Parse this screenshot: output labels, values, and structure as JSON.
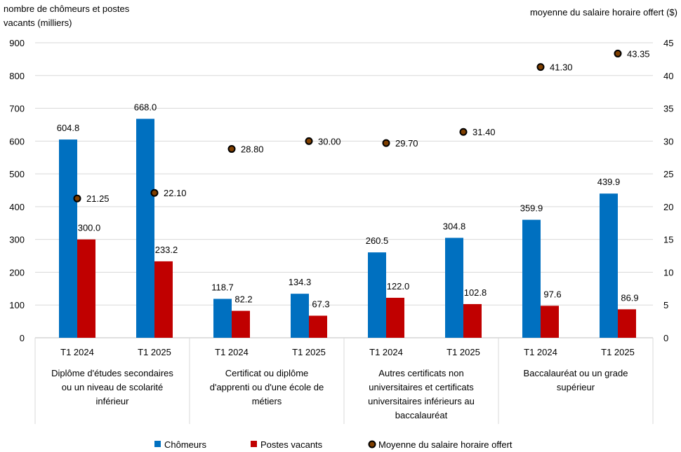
{
  "chart_data": {
    "type": "bar",
    "ylabel": "nombre de chômeurs et postes vacants (milliers)",
    "ylabel_lines": [
      "nombre de chômeurs et postes",
      "vacants (milliers)"
    ],
    "y2label": "moyenne du salaire horaire offert ($)",
    "ylim": [
      0,
      900
    ],
    "y2lim": [
      0,
      45
    ],
    "yticks": [
      0,
      100,
      200,
      300,
      400,
      500,
      600,
      700,
      800,
      900
    ],
    "y2ticks": [
      0,
      5,
      10,
      15,
      20,
      25,
      30,
      35,
      40,
      45
    ],
    "grid": true,
    "legend_position": "bottom",
    "groups": [
      {
        "label": "Diplôme d'études secondaires ou un niveau de scolarité inférieur",
        "label_lines": [
          "Diplôme d'études secondaires",
          "ou un niveau de scolarité",
          "inférieur"
        ]
      },
      {
        "label": "Certificat ou diplôme d'apprenti ou d'une école de métiers",
        "label_lines": [
          "Certificat ou diplôme",
          "d'apprenti ou d'une école de",
          "métiers"
        ]
      },
      {
        "label": "Autres certificats non universitaires et certificats universitaires inférieurs au baccalauréat",
        "label_lines": [
          "Autres certificats non",
          "universitaires et certificats",
          "universitaires inférieurs au",
          "baccalauréat"
        ]
      },
      {
        "label": "Baccalauréat ou un grade supérieur",
        "label_lines": [
          "Baccalauréat ou un grade",
          "supérieur"
        ]
      }
    ],
    "categories": [
      "T1 2024",
      "T1 2025",
      "T1 2024",
      "T1 2025",
      "T1 2024",
      "T1 2025",
      "T1 2024",
      "T1 2025"
    ],
    "series": [
      {
        "name": "Chômeurs",
        "type": "bar",
        "axis": "left",
        "color": "#0070C0",
        "values": [
          604.8,
          668.0,
          118.7,
          134.3,
          260.5,
          304.8,
          359.9,
          439.9
        ]
      },
      {
        "name": "Postes vacants",
        "type": "bar",
        "axis": "left",
        "color": "#C00000",
        "values": [
          300.0,
          233.2,
          82.2,
          67.3,
          122.0,
          102.8,
          97.6,
          86.9
        ]
      },
      {
        "name": "Moyenne du salaire horaire offert",
        "type": "scatter",
        "axis": "right",
        "color": "#7F3F00",
        "values": [
          21.25,
          22.1,
          28.8,
          30.0,
          29.7,
          31.4,
          41.3,
          43.35
        ]
      }
    ]
  }
}
